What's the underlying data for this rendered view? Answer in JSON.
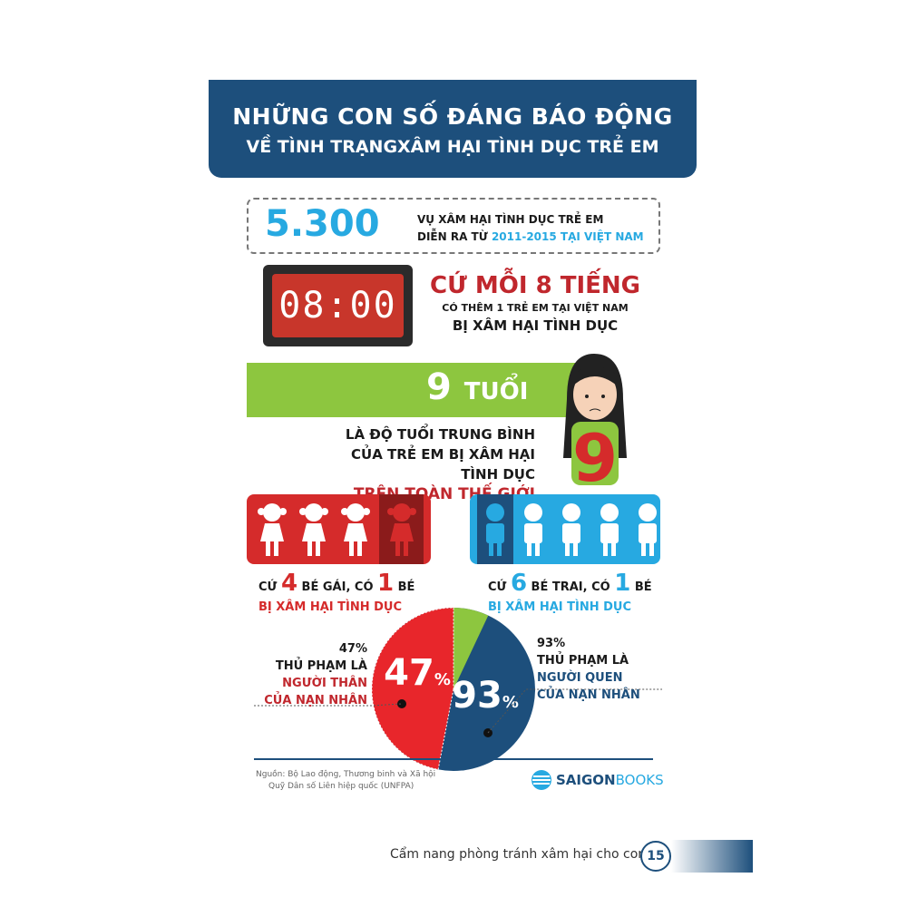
{
  "title": {
    "line1": "NHỮNG CON SỐ ĐÁNG BÁO ĐỘNG",
    "line2": "VỀ TÌNH TRẠNGXÂM HẠI TÌNH DỤC TRẺ EM"
  },
  "stat1": {
    "number": "5.300",
    "line1": "VỤ XÂM HẠI TÌNH DỤC TRẺ EM",
    "line2_prefix": "DIỄN RA TỪ ",
    "line2_highlight": "2011-2015 TẠI VIỆT NAM"
  },
  "stat2": {
    "clock": "08:00",
    "headline": "CỨ MỖI 8 TIẾNG",
    "line1": "CÓ THÊM 1 TRẺ EM TẠI VIỆT NAM",
    "line2": "BỊ XÂM HẠI TÌNH DỤC"
  },
  "stat3": {
    "number": "9",
    "unit": "TUỔI",
    "line1": "LÀ ĐỘ TUỔI TRUNG BÌNH",
    "line2": "CỦA TRẺ EM BỊ XÂM HẠI TÌNH DỤC",
    "line3": "TRÊN TOÀN THẾ GIỚI",
    "girl_number": "9"
  },
  "girls": {
    "pre": "CỨ ",
    "n": "4",
    "mid": " BÉ GÁI, CÓ ",
    "k": "1",
    "post": " BÉ",
    "line2": "BỊ XÂM HẠI TÌNH DỤC",
    "total": 4,
    "highlighted": 1
  },
  "boys": {
    "pre": "CỨ ",
    "n": "6",
    "mid": " BÉ TRAI, CÓ ",
    "k": "1",
    "post": " BÉ",
    "line2": "BỊ XÂM HẠI TÌNH DỤC",
    "total": 6,
    "highlighted": 1
  },
  "pie": {
    "relatives": {
      "value": "47%",
      "pct": "47",
      "sign": "%",
      "line1": "THỦ PHẠM LÀ",
      "line2": "NGƯỜI THÂN",
      "line3": "CỦA NẠN NHÂN",
      "color": "#e8262b"
    },
    "acquaintances": {
      "value": "93%",
      "pct": "93",
      "sign": "%",
      "line1": "THỦ PHẠM LÀ",
      "line2": "NGƯỜI QUEN",
      "line3": "CỦA NẠN NHÂN",
      "color": "#1d4f7c"
    },
    "other_color": "#8dc63f"
  },
  "source": {
    "line1": "Nguồn: Bộ Lao động, Thương binh và Xã hội",
    "line2": "Quỹ Dân số Liên hiệp quốc (UNFPA)"
  },
  "logo": {
    "text_bold": "SAIGON",
    "text_light": "BOOKS"
  },
  "footer": {
    "book_title": "Cẩm nang phòng tránh xâm hại cho con",
    "page": "15"
  },
  "colors": {
    "navy": "#1d4f7c",
    "red": "#d52b2b",
    "cyan": "#27a9e1",
    "green": "#8dc63f"
  }
}
